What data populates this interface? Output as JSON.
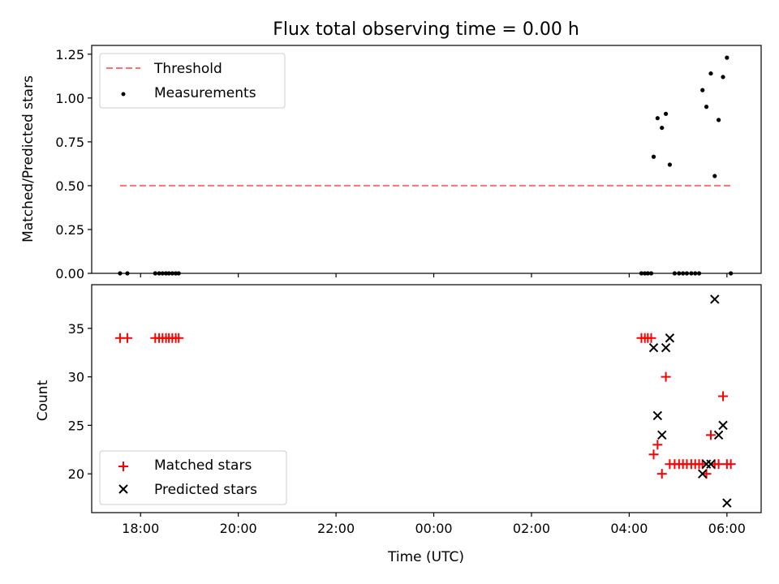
{
  "colors": {
    "threshold": "#ff7070",
    "measurement": "#000000",
    "matched": "#ff0000",
    "predicted": "#000000",
    "axis": "#000000",
    "background": "#ffffff"
  },
  "chart_data": [
    {
      "type": "scatter",
      "title": "Flux total observing time = 0.00 h",
      "xlabel": "",
      "ylabel": "Matched/Predicted stars",
      "xlim": [
        17.0,
        30.7
      ],
      "ylim": [
        0.0,
        1.3
      ],
      "xticks": [
        18,
        20,
        22,
        24,
        26,
        28,
        30
      ],
      "yticks": [
        0.0,
        0.25,
        0.5,
        0.75,
        1.0,
        1.25
      ],
      "ytick_labels": [
        "0.00",
        "0.25",
        "0.50",
        "0.75",
        "1.00",
        "1.25"
      ],
      "legend": {
        "placement": "upper-left",
        "entries": [
          "Threshold",
          "Measurements"
        ]
      },
      "threshold": {
        "name": "Threshold",
        "y": 0.5,
        "x_start": 17.58,
        "x_end": 30.1
      },
      "measurements": {
        "name": "Measurements",
        "x": [
          17.58,
          17.73,
          18.3,
          18.38,
          18.45,
          18.52,
          18.58,
          18.65,
          18.72,
          18.78,
          28.25,
          28.32,
          28.38,
          28.45,
          28.5,
          28.58,
          28.67,
          28.75,
          28.83,
          28.93,
          29.02,
          29.1,
          29.18,
          29.27,
          29.35,
          29.43,
          29.5,
          29.58,
          29.67,
          29.75,
          29.83,
          29.92,
          30.0,
          30.08
        ],
        "y": [
          0.0,
          0.0,
          0.0,
          0.0,
          0.0,
          0.0,
          0.0,
          0.0,
          0.0,
          0.0,
          0.0,
          0.0,
          0.0,
          0.0,
          0.665,
          0.885,
          0.83,
          0.91,
          0.62,
          0.0,
          0.0,
          0.0,
          0.0,
          0.0,
          0.0,
          0.0,
          1.045,
          0.95,
          1.14,
          0.555,
          0.875,
          1.12,
          1.23,
          0.0
        ]
      }
    },
    {
      "type": "scatter",
      "title": "",
      "xlabel": "Time (UTC)",
      "ylabel": "Count",
      "xlim": [
        17.0,
        30.7
      ],
      "ylim": [
        16.0,
        39.5
      ],
      "xticks": [
        18,
        20,
        22,
        24,
        26,
        28,
        30
      ],
      "xtick_labels": [
        "18:00",
        "20:00",
        "22:00",
        "00:00",
        "02:00",
        "04:00",
        "06:00"
      ],
      "yticks": [
        20,
        25,
        30,
        35
      ],
      "ytick_labels": [
        "20",
        "25",
        "30",
        "35"
      ],
      "legend": {
        "placement": "lower-left",
        "entries": [
          "Matched stars",
          "Predicted stars"
        ]
      },
      "series": [
        {
          "name": "Matched stars",
          "marker": "+",
          "x": [
            17.58,
            17.73,
            18.3,
            18.38,
            18.45,
            18.52,
            18.58,
            18.65,
            18.72,
            18.78,
            28.25,
            28.32,
            28.38,
            28.45,
            28.5,
            28.58,
            28.67,
            28.75,
            28.83,
            28.93,
            29.02,
            29.1,
            29.18,
            29.27,
            29.35,
            29.43,
            29.5,
            29.58,
            29.67,
            29.75,
            29.83,
            29.92,
            30.0,
            30.08
          ],
          "y": [
            34,
            34,
            34,
            34,
            34,
            34,
            34,
            34,
            34,
            34,
            34,
            34,
            34,
            34,
            22,
            23,
            20,
            30,
            21,
            21,
            21,
            21,
            21,
            21,
            21,
            21,
            21,
            20,
            24,
            21,
            21,
            28,
            21,
            21
          ]
        },
        {
          "name": "Predicted stars",
          "marker": "x",
          "x": [
            28.5,
            28.58,
            28.67,
            28.75,
            28.83,
            29.5,
            29.58,
            29.67,
            29.75,
            29.83,
            29.92,
            30.0
          ],
          "y": [
            33,
            26,
            24,
            33,
            34,
            20,
            21,
            21,
            38,
            24,
            25,
            17
          ]
        }
      ]
    }
  ]
}
